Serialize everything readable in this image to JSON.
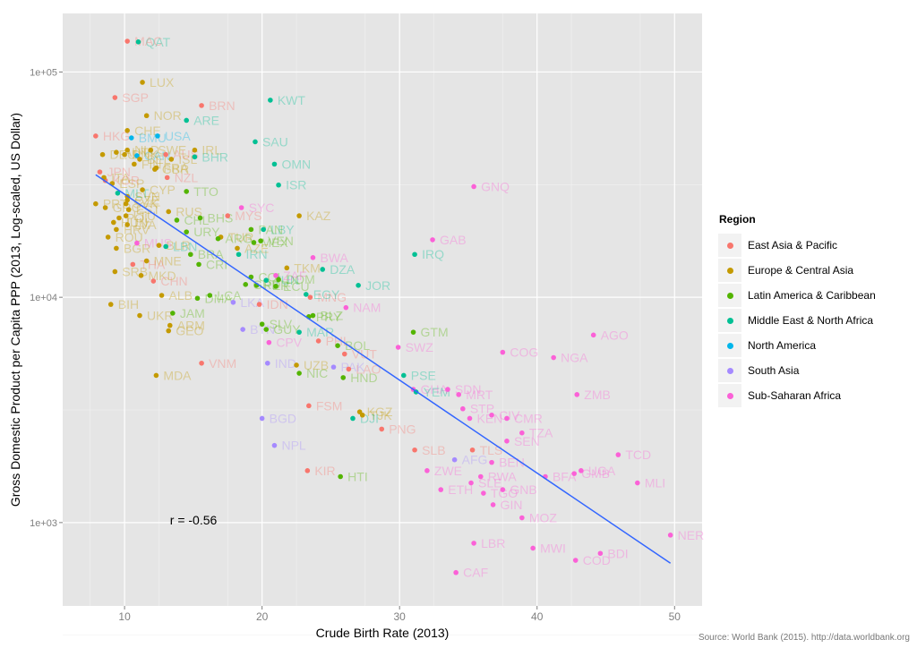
{
  "chart_data": {
    "type": "scatter",
    "xlabel": "Crude Birth Rate (2013)",
    "ylabel": "Gross Domestic Product per Capita PPP (2013, Log-scaled, US Dollar)",
    "x_range": [
      5.5,
      52
    ],
    "y_range_log10": [
      2.63,
      5.26
    ],
    "y_scale": "log10",
    "x_ticks": [
      "10",
      "20",
      "30",
      "40",
      "50"
    ],
    "y_ticks": [
      "1e+03",
      "1e+04",
      "1e+05"
    ],
    "grid": true,
    "correlation_annotation": {
      "label": "r = -0.56",
      "x": 13.3,
      "y": 980
    },
    "regression_line": {
      "color": "#3366ff",
      "points": [
        [
          7.9,
          35000
        ],
        [
          49.7,
          660
        ]
      ]
    },
    "legend": {
      "title": "Region",
      "placement": "right",
      "entries": [
        {
          "key": "EAP",
          "label": "East Asia & Pacific",
          "color": "#f8766d"
        },
        {
          "key": "ECA",
          "label": "Europe & Central Asia",
          "color": "#c49a00"
        },
        {
          "key": "LAC",
          "label": "Latin America & Caribbean",
          "color": "#53b400"
        },
        {
          "key": "MNA",
          "label": "Middle East & North Africa",
          "color": "#00c094"
        },
        {
          "key": "NAM",
          "label": "North America",
          "color": "#00b6eb"
        },
        {
          "key": "SAS",
          "label": "South Asia",
          "color": "#a58aff"
        },
        {
          "key": "SSA",
          "label": "Sub-Saharan Africa",
          "color": "#fb61d7"
        }
      ]
    },
    "points": [
      {
        "c": "QAT",
        "x": 11.0,
        "y": 136000,
        "r": "MNA"
      },
      {
        "c": "MAC",
        "x": 10.2,
        "y": 137000,
        "r": "EAP"
      },
      {
        "c": "LUX",
        "x": 11.3,
        "y": 90000,
        "r": "ECA"
      },
      {
        "c": "SGP",
        "x": 9.3,
        "y": 77000,
        "r": "EAP"
      },
      {
        "c": "BRN",
        "x": 15.6,
        "y": 71000,
        "r": "EAP"
      },
      {
        "c": "KWT",
        "x": 20.6,
        "y": 75000,
        "r": "MNA"
      },
      {
        "c": "NOR",
        "x": 11.6,
        "y": 64000,
        "r": "ECA"
      },
      {
        "c": "ARE",
        "x": 14.5,
        "y": 61000,
        "r": "MNA"
      },
      {
        "c": "CHE",
        "x": 10.2,
        "y": 55000,
        "r": "ECA"
      },
      {
        "c": "HKG",
        "x": 7.9,
        "y": 52000,
        "r": "EAP"
      },
      {
        "c": "BMU",
        "x": 10.5,
        "y": 51000,
        "r": "NAM"
      },
      {
        "c": "USA",
        "x": 12.4,
        "y": 52000,
        "r": "NAM"
      },
      {
        "c": "SAU",
        "x": 19.5,
        "y": 49000,
        "r": "MNA"
      },
      {
        "c": "BHR",
        "x": 15.1,
        "y": 42000,
        "r": "MNA"
      },
      {
        "c": "CAN",
        "x": 10.9,
        "y": 42500,
        "r": "NAM"
      },
      {
        "c": "AUS",
        "x": 13.0,
        "y": 43000,
        "r": "EAP"
      },
      {
        "c": "OMN",
        "x": 20.9,
        "y": 39000,
        "r": "MNA"
      },
      {
        "c": "JPN",
        "x": 8.2,
        "y": 36000,
        "r": "EAP"
      },
      {
        "c": "ISR",
        "x": 21.2,
        "y": 31500,
        "r": "MNA"
      },
      {
        "c": "TTO",
        "x": 14.5,
        "y": 29500,
        "r": "LAC"
      },
      {
        "c": "NZL",
        "x": 13.1,
        "y": 34000,
        "r": "EAP"
      },
      {
        "c": "KOR",
        "x": 8.6,
        "y": 33000,
        "r": "EAP"
      },
      {
        "c": "GNQ",
        "x": 35.4,
        "y": 31000,
        "r": "SSA"
      },
      {
        "c": "SYC",
        "x": 18.5,
        "y": 25000,
        "r": "SSA"
      },
      {
        "c": "RUS",
        "x": 13.2,
        "y": 24000,
        "r": "ECA"
      },
      {
        "c": "KAZ",
        "x": 22.7,
        "y": 23000,
        "r": "ECA"
      },
      {
        "c": "BHS",
        "x": 15.5,
        "y": 22500,
        "r": "LAC"
      },
      {
        "c": "MYS",
        "x": 17.5,
        "y": 23000,
        "r": "EAP"
      },
      {
        "c": "LBY",
        "x": 20.1,
        "y": 20000,
        "r": "MNA"
      },
      {
        "c": "URY",
        "x": 14.5,
        "y": 19500,
        "r": "LAC"
      },
      {
        "c": "GAB",
        "x": 32.4,
        "y": 18000,
        "r": "SSA"
      },
      {
        "c": "TUR",
        "x": 17.0,
        "y": 18500,
        "r": "ECA"
      },
      {
        "c": "MEX",
        "x": 19.4,
        "y": 17500,
        "r": "LAC"
      },
      {
        "c": "VEN",
        "x": 19.9,
        "y": 17800,
        "r": "LAC"
      },
      {
        "c": "IRQ",
        "x": 31.1,
        "y": 15500,
        "r": "MNA"
      },
      {
        "c": "BWA",
        "x": 23.7,
        "y": 15000,
        "r": "SSA"
      },
      {
        "c": "BRA",
        "x": 14.8,
        "y": 15500,
        "r": "LAC"
      },
      {
        "c": "BGR",
        "x": 9.4,
        "y": 16500,
        "r": "ECA"
      },
      {
        "c": "CRI",
        "x": 15.4,
        "y": 14000,
        "r": "LAC"
      },
      {
        "c": "TKM",
        "x": 21.8,
        "y": 13500,
        "r": "ECA"
      },
      {
        "c": "DZA",
        "x": 24.4,
        "y": 13300,
        "r": "MNA"
      },
      {
        "c": "COL",
        "x": 19.2,
        "y": 12300,
        "r": "LAC"
      },
      {
        "c": "TUN",
        "x": 20.3,
        "y": 11900,
        "r": "MNA"
      },
      {
        "c": "ECU",
        "x": 21.0,
        "y": 11200,
        "r": "LAC"
      },
      {
        "c": "JOR",
        "x": 27.0,
        "y": 11300,
        "r": "MNA"
      },
      {
        "c": "MNG",
        "x": 23.5,
        "y": 10000,
        "r": "EAP"
      },
      {
        "c": "EGY",
        "x": 23.2,
        "y": 10300,
        "r": "MNA"
      },
      {
        "c": "ALB",
        "x": 12.7,
        "y": 10200,
        "r": "ECA"
      },
      {
        "c": "LCA",
        "x": 16.2,
        "y": 10200,
        "r": "LAC"
      },
      {
        "c": "BIH",
        "x": 9.0,
        "y": 9300,
        "r": "ECA"
      },
      {
        "c": "NAM",
        "x": 26.1,
        "y": 9000,
        "r": "SSA"
      },
      {
        "c": "LKA",
        "x": 17.9,
        "y": 9500,
        "r": "SAS"
      },
      {
        "c": "UKR",
        "x": 11.1,
        "y": 8300,
        "r": "ECA"
      },
      {
        "c": "JAM",
        "x": 13.5,
        "y": 8500,
        "r": "LAC"
      },
      {
        "c": "PRY",
        "x": 23.4,
        "y": 8200,
        "r": "LAC"
      },
      {
        "c": "BLZ",
        "x": 23.7,
        "y": 8300,
        "r": "LAC"
      },
      {
        "c": "ARM",
        "x": 13.3,
        "y": 7500,
        "r": "ECA"
      },
      {
        "c": "SLV",
        "x": 20.0,
        "y": 7600,
        "r": "LAC"
      },
      {
        "c": "GEO",
        "x": 13.2,
        "y": 7100,
        "r": "ECA"
      },
      {
        "c": "GTM",
        "x": 31.0,
        "y": 7000,
        "r": "LAC"
      },
      {
        "c": "GUY",
        "x": 20.3,
        "y": 7200,
        "r": "LAC"
      },
      {
        "c": "MAR",
        "x": 22.7,
        "y": 7000,
        "r": "MNA"
      },
      {
        "c": "CPV",
        "x": 20.5,
        "y": 6300,
        "r": "SSA"
      },
      {
        "c": "BOL",
        "x": 25.5,
        "y": 6100,
        "r": "LAC"
      },
      {
        "c": "AGO",
        "x": 44.1,
        "y": 6800,
        "r": "SSA"
      },
      {
        "c": "SWZ",
        "x": 29.9,
        "y": 6000,
        "r": "SSA"
      },
      {
        "c": "COG",
        "x": 37.5,
        "y": 5700,
        "r": "SSA"
      },
      {
        "c": "NGA",
        "x": 41.2,
        "y": 5400,
        "r": "SSA"
      },
      {
        "c": "IND",
        "x": 20.4,
        "y": 5100,
        "r": "SAS"
      },
      {
        "c": "VNM",
        "x": 15.6,
        "y": 5100,
        "r": "EAP"
      },
      {
        "c": "UZB",
        "x": 22.5,
        "y": 5000,
        "r": "ECA"
      },
      {
        "c": "MDA",
        "x": 12.3,
        "y": 4500,
        "r": "ECA"
      },
      {
        "c": "NIC",
        "x": 22.7,
        "y": 4600,
        "r": "LAC"
      },
      {
        "c": "HND",
        "x": 25.9,
        "y": 4400,
        "r": "LAC"
      },
      {
        "c": "LAO",
        "x": 26.3,
        "y": 4800,
        "r": "EAP"
      },
      {
        "c": "PSE",
        "x": 30.3,
        "y": 4500,
        "r": "MNA"
      },
      {
        "c": "GHA",
        "x": 31.0,
        "y": 3900,
        "r": "SSA"
      },
      {
        "c": "YEM",
        "x": 31.2,
        "y": 3800,
        "r": "MNA"
      },
      {
        "c": "SDN",
        "x": 33.5,
        "y": 3900,
        "r": "SSA"
      },
      {
        "c": "ZMB",
        "x": 42.9,
        "y": 3700,
        "r": "SSA"
      },
      {
        "c": "MRT",
        "x": 34.3,
        "y": 3700,
        "r": "SSA"
      },
      {
        "c": "FSM",
        "x": 23.4,
        "y": 3300,
        "r": "EAP"
      },
      {
        "c": "KGZ",
        "x": 27.1,
        "y": 3100,
        "r": "ECA"
      },
      {
        "c": "STP",
        "x": 34.6,
        "y": 3200,
        "r": "SSA"
      },
      {
        "c": "TJK",
        "x": 27.3,
        "y": 3000,
        "r": "ECA"
      },
      {
        "c": "BGD",
        "x": 20.0,
        "y": 2900,
        "r": "SAS"
      },
      {
        "c": "KEN",
        "x": 35.1,
        "y": 2900,
        "r": "SSA"
      },
      {
        "c": "CIV",
        "x": 36.7,
        "y": 3000,
        "r": "SSA"
      },
      {
        "c": "CMR",
        "x": 37.8,
        "y": 2900,
        "r": "SSA"
      },
      {
        "c": "PNG",
        "x": 28.7,
        "y": 2600,
        "r": "EAP"
      },
      {
        "c": "TZA",
        "x": 38.9,
        "y": 2500,
        "r": "SSA"
      },
      {
        "c": "SEN",
        "x": 37.8,
        "y": 2300,
        "r": "SSA"
      },
      {
        "c": "NPL",
        "x": 20.9,
        "y": 2200,
        "r": "SAS"
      },
      {
        "c": "SLB",
        "x": 31.1,
        "y": 2100,
        "r": "EAP"
      },
      {
        "c": "TCD",
        "x": 45.9,
        "y": 2000,
        "r": "SSA"
      },
      {
        "c": "AFG",
        "x": 34.0,
        "y": 1900,
        "r": "SAS"
      },
      {
        "c": "BEN",
        "x": 36.7,
        "y": 1850,
        "r": "SSA"
      },
      {
        "c": "KIR",
        "x": 23.3,
        "y": 1700,
        "r": "EAP"
      },
      {
        "c": "ZWE",
        "x": 32.0,
        "y": 1700,
        "r": "SSA"
      },
      {
        "c": "HTI",
        "x": 25.7,
        "y": 1600,
        "r": "LAC"
      },
      {
        "c": "UGA",
        "x": 43.2,
        "y": 1700,
        "r": "SSA"
      },
      {
        "c": "GMB",
        "x": 42.7,
        "y": 1650,
        "r": "SSA"
      },
      {
        "c": "BFA",
        "x": 40.6,
        "y": 1600,
        "r": "SSA"
      },
      {
        "c": "MLI",
        "x": 47.3,
        "y": 1500,
        "r": "SSA"
      },
      {
        "c": "RWA",
        "x": 35.9,
        "y": 1600,
        "r": "SSA"
      },
      {
        "c": "ETH",
        "x": 33.0,
        "y": 1400,
        "r": "SSA"
      },
      {
        "c": "SLE",
        "x": 35.2,
        "y": 1500,
        "r": "SSA"
      },
      {
        "c": "GNB",
        "x": 37.5,
        "y": 1400,
        "r": "SSA"
      },
      {
        "c": "TGO",
        "x": 36.1,
        "y": 1350,
        "r": "SSA"
      },
      {
        "c": "GIN",
        "x": 36.8,
        "y": 1200,
        "r": "SSA"
      },
      {
        "c": "MOZ",
        "x": 38.9,
        "y": 1050,
        "r": "SSA"
      },
      {
        "c": "NER",
        "x": 49.7,
        "y": 880,
        "r": "SSA"
      },
      {
        "c": "LBR",
        "x": 35.4,
        "y": 810,
        "r": "SSA"
      },
      {
        "c": "MWI",
        "x": 39.7,
        "y": 770,
        "r": "SSA"
      },
      {
        "c": "BDI",
        "x": 44.6,
        "y": 730,
        "r": "SSA"
      },
      {
        "c": "COD",
        "x": 42.8,
        "y": 680,
        "r": "SSA"
      },
      {
        "c": "CAF",
        "x": 34.1,
        "y": 600,
        "r": "SSA"
      },
      {
        "c": "DEU",
        "x": 8.4,
        "y": 43000,
        "r": "ECA"
      },
      {
        "c": "AUT",
        "x": 9.4,
        "y": 44000,
        "r": "ECA"
      },
      {
        "c": "NLD",
        "x": 10.2,
        "y": 45000,
        "r": "ECA"
      },
      {
        "c": "SWE",
        "x": 11.9,
        "y": 45000,
        "r": "ECA"
      },
      {
        "c": "DNK",
        "x": 10.0,
        "y": 43000,
        "r": "ECA"
      },
      {
        "c": "IRL",
        "x": 15.1,
        "y": 45000,
        "r": "ECA"
      },
      {
        "c": "BEL",
        "x": 11.1,
        "y": 41000,
        "r": "ECA"
      },
      {
        "c": "ISL",
        "x": 13.4,
        "y": 41000,
        "r": "ECA"
      },
      {
        "c": "FIN",
        "x": 10.7,
        "y": 39000,
        "r": "ECA"
      },
      {
        "c": "GBR",
        "x": 12.2,
        "y": 37000,
        "r": "ECA"
      },
      {
        "c": "FRA",
        "x": 12.3,
        "y": 37500,
        "r": "ECA"
      },
      {
        "c": "ITA",
        "x": 8.5,
        "y": 34000,
        "r": "ECA"
      },
      {
        "c": "ESP",
        "x": 9.1,
        "y": 32000,
        "r": "ECA"
      },
      {
        "c": "CYP",
        "x": 11.3,
        "y": 30000,
        "r": "ECA"
      },
      {
        "c": "SVN",
        "x": 10.2,
        "y": 28000,
        "r": "ECA"
      },
      {
        "c": "CZE",
        "x": 10.2,
        "y": 27000,
        "r": "ECA"
      },
      {
        "c": "SVK",
        "x": 10.1,
        "y": 26000,
        "r": "ECA"
      },
      {
        "c": "PRT",
        "x": 7.9,
        "y": 26000,
        "r": "ECA"
      },
      {
        "c": "GRC",
        "x": 8.6,
        "y": 25000,
        "r": "ECA"
      },
      {
        "c": "MLT",
        "x": 9.5,
        "y": 29000,
        "r": "MNA"
      },
      {
        "c": "EST",
        "x": 10.3,
        "y": 24500,
        "r": "ECA"
      },
      {
        "c": "LTU",
        "x": 10.1,
        "y": 23000,
        "r": "ECA"
      },
      {
        "c": "POL",
        "x": 9.6,
        "y": 22500,
        "r": "ECA"
      },
      {
        "c": "HUN",
        "x": 9.2,
        "y": 21500,
        "r": "ECA"
      },
      {
        "c": "LVA",
        "x": 10.2,
        "y": 21000,
        "r": "ECA"
      },
      {
        "c": "HRV",
        "x": 9.4,
        "y": 20000,
        "r": "ECA"
      },
      {
        "c": "ARG",
        "x": 16.8,
        "y": 18200,
        "r": "LAC"
      },
      {
        "c": "CHL",
        "x": 13.8,
        "y": 22000,
        "r": "LAC"
      },
      {
        "c": "PAN",
        "x": 19.2,
        "y": 20000,
        "r": "LAC"
      },
      {
        "c": "BLR",
        "x": 12.5,
        "y": 17000,
        "r": "ECA"
      },
      {
        "c": "ROU",
        "x": 8.8,
        "y": 18500,
        "r": "ECA"
      },
      {
        "c": "MNE",
        "x": 11.6,
        "y": 14500,
        "r": "ECA"
      },
      {
        "c": "SRB",
        "x": 9.3,
        "y": 13000,
        "r": "ECA"
      },
      {
        "c": "MKD",
        "x": 11.2,
        "y": 12500,
        "r": "ECA"
      },
      {
        "c": "THA",
        "x": 10.6,
        "y": 14000,
        "r": "EAP"
      },
      {
        "c": "CHN",
        "x": 12.1,
        "y": 11800,
        "r": "EAP"
      },
      {
        "c": "IRN",
        "x": 18.3,
        "y": 15500,
        "r": "MNA"
      },
      {
        "c": "LBN",
        "x": 13.0,
        "y": 16800,
        "r": "MNA"
      },
      {
        "c": "AZE",
        "x": 18.2,
        "y": 16500,
        "r": "ECA"
      },
      {
        "c": "DOM",
        "x": 21.2,
        "y": 12000,
        "r": "LAC"
      },
      {
        "c": "PER",
        "x": 19.6,
        "y": 11300,
        "r": "LAC"
      },
      {
        "c": "ZAF",
        "x": 21.0,
        "y": 12500,
        "r": "SSA"
      },
      {
        "c": "MUS",
        "x": 10.9,
        "y": 17400,
        "r": "SSA"
      },
      {
        "c": "GRD",
        "x": 18.8,
        "y": 11400,
        "r": "LAC"
      },
      {
        "c": "DMA",
        "x": 15.3,
        "y": 9900,
        "r": "LAC"
      },
      {
        "c": "IDN",
        "x": 19.8,
        "y": 9300,
        "r": "EAP"
      },
      {
        "c": "PHL",
        "x": 24.1,
        "y": 6400,
        "r": "EAP"
      },
      {
        "c": "BTN",
        "x": 18.6,
        "y": 7200,
        "r": "SAS"
      },
      {
        "c": "VUT",
        "x": 26.0,
        "y": 5600,
        "r": "EAP"
      },
      {
        "c": "TLS",
        "x": 35.3,
        "y": 2100,
        "r": "EAP"
      },
      {
        "c": "PAK",
        "x": 25.2,
        "y": 4900,
        "r": "SAS"
      },
      {
        "c": "DJI",
        "x": 26.6,
        "y": 2900,
        "r": "MNA"
      }
    ]
  },
  "source_caption": "Source: World Bank (2015). http://data.worldbank.org"
}
